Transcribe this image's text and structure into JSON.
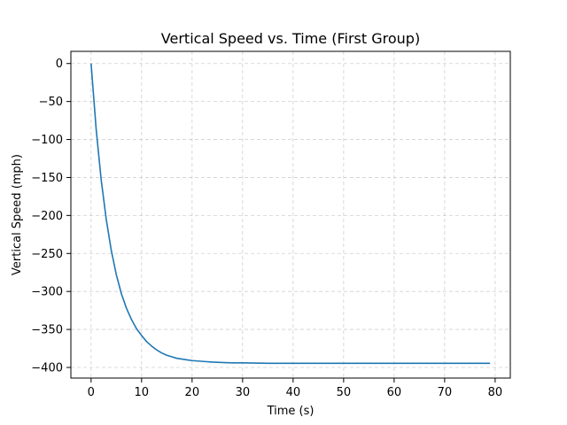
{
  "chart_data": {
    "type": "line",
    "title": "Vertical Speed vs. Time (First Group)",
    "xlabel": "Time (s)",
    "ylabel": "Vertical Speed (mph)",
    "xlim": [
      -4,
      83
    ],
    "ylim": [
      -414,
      16
    ],
    "xticks": [
      0,
      10,
      20,
      30,
      40,
      50,
      60,
      70,
      80
    ],
    "yticks": [
      0,
      -50,
      -100,
      -150,
      -200,
      -250,
      -300,
      -350,
      -400
    ],
    "grid": true,
    "series": [
      {
        "color": "#1f77b4",
        "x": [
          0,
          1,
          2,
          3,
          4,
          5,
          6,
          7,
          8,
          9,
          10,
          11,
          12,
          13,
          14,
          15,
          16,
          17,
          18,
          19,
          20,
          22,
          24,
          26,
          28,
          30,
          35,
          40,
          45,
          50,
          55,
          60,
          65,
          70,
          75,
          79
        ],
        "y": [
          0,
          -86,
          -153,
          -205,
          -246,
          -278,
          -303,
          -322,
          -337,
          -349,
          -358,
          -366,
          -372,
          -377,
          -381,
          -384,
          -386,
          -388,
          -389,
          -390,
          -391,
          -392,
          -393,
          -393.5,
          -394,
          -394,
          -394.5,
          -394.5,
          -394.5,
          -394.5,
          -394.5,
          -394.5,
          -394.5,
          -394.5,
          -394.5,
          -394.5
        ]
      }
    ]
  }
}
